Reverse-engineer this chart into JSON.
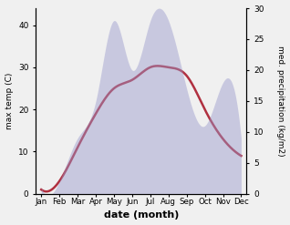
{
  "months": [
    "Jan",
    "Feb",
    "Mar",
    "Apr",
    "May",
    "Jun",
    "Jul",
    "Aug",
    "Sep",
    "Oct",
    "Nov",
    "Dec"
  ],
  "temperature": [
    1,
    3,
    11,
    19,
    25,
    27,
    30,
    30,
    28,
    20,
    13,
    9
  ],
  "precipitation": [
    1,
    2,
    9,
    15,
    28,
    20,
    28,
    28,
    17,
    11,
    18,
    9
  ],
  "temp_color": "#b03040",
  "precip_color": "#9999cc",
  "precip_fill_alpha": 0.45,
  "ylabel_left": "max temp (C)",
  "ylabel_right": "med. precipitation (kg/m2)",
  "xlabel": "date (month)",
  "ylim_left": [
    0,
    44
  ],
  "ylim_right": [
    0,
    30
  ],
  "yticks_left": [
    0,
    10,
    20,
    30,
    40
  ],
  "yticks_right": [
    0,
    5,
    10,
    15,
    20,
    25,
    30
  ]
}
